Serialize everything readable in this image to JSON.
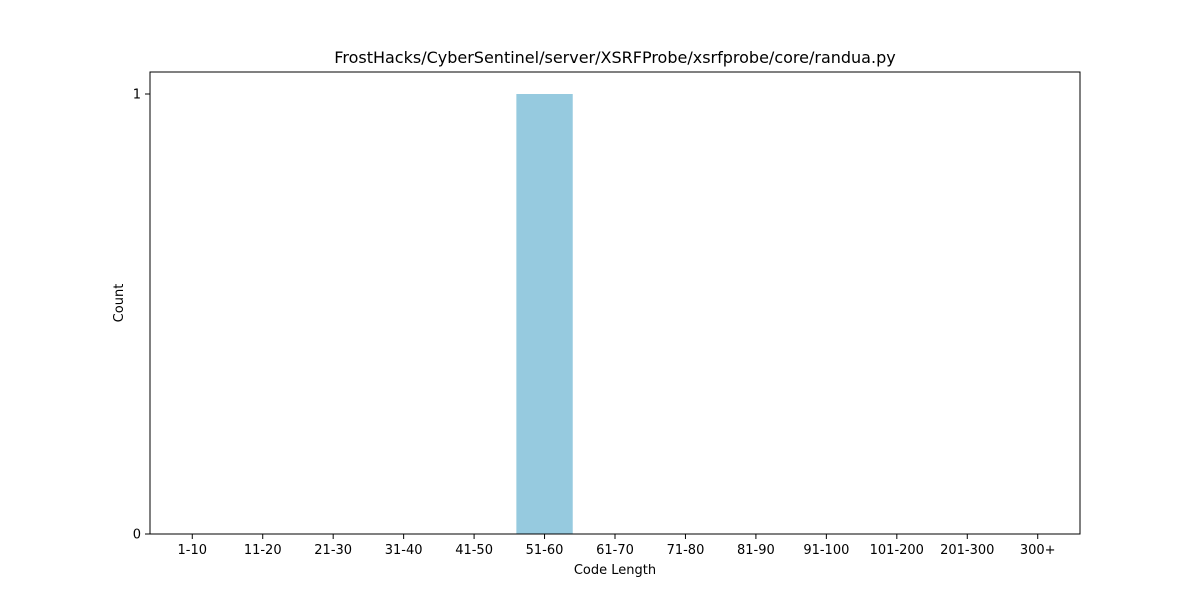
{
  "chart_data": {
    "type": "bar",
    "title": "FrostHacks/CyberSentinel/server/XSRFProbe/xsrfprobe/core/randua.py",
    "xlabel": "Code Length",
    "ylabel": "Count",
    "categories": [
      "1-10",
      "11-20",
      "21-30",
      "31-40",
      "41-50",
      "51-60",
      "61-70",
      "71-80",
      "81-90",
      "91-100",
      "101-200",
      "201-300",
      "300+"
    ],
    "values": [
      0,
      0,
      0,
      0,
      0,
      1,
      0,
      0,
      0,
      0,
      0,
      0,
      0
    ],
    "ylim": [
      0,
      1.05
    ],
    "yticks": [
      0,
      1
    ],
    "bar_color": "#96cadf",
    "grid": false,
    "legend": "none"
  }
}
